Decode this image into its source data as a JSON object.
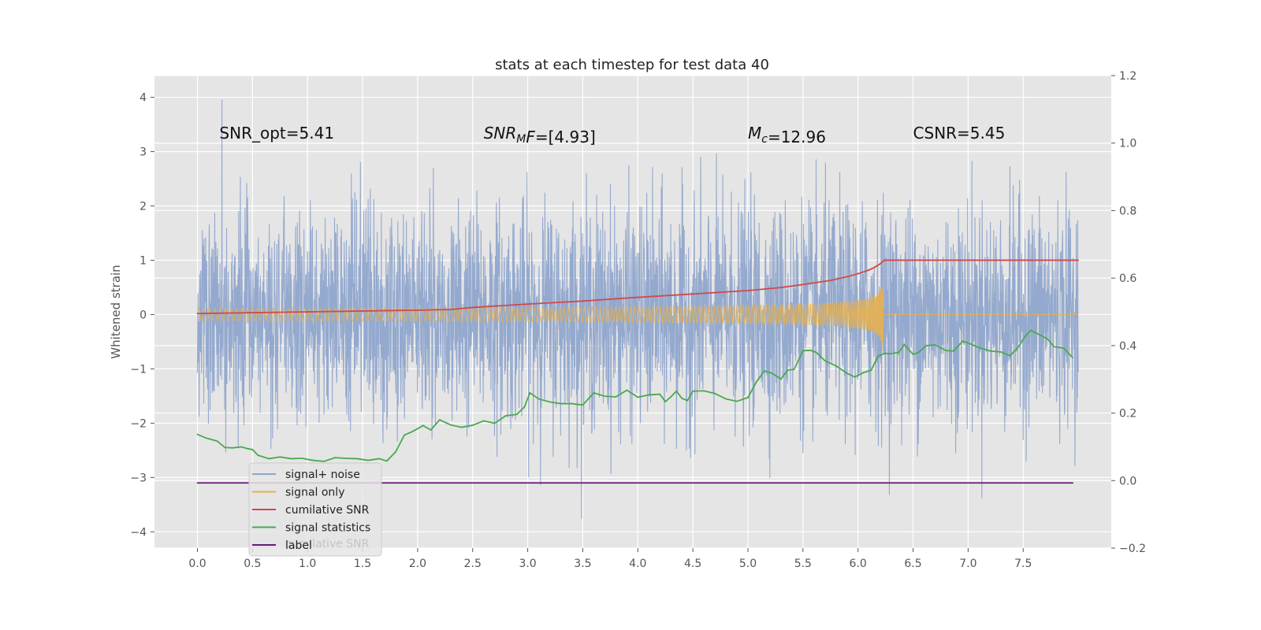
{
  "chart_data": {
    "type": "line",
    "title": "stats at each timestep for test data 40",
    "xlabel": "",
    "ylabel": "Whitened strain",
    "y2label": "",
    "xlim": [
      -0.39,
      8.3
    ],
    "ylim": [
      -4.3,
      4.4
    ],
    "y2lim": [
      -0.2,
      1.2
    ],
    "grid": true,
    "background": "#e5e5e5",
    "legend_placement": "lower-left",
    "x_ticks": [
      0.0,
      0.5,
      1.0,
      1.5,
      2.0,
      2.5,
      3.0,
      3.5,
      4.0,
      4.5,
      5.0,
      5.5,
      6.0,
      6.5,
      7.0,
      7.5
    ],
    "x_tick_labels": [
      "0.0",
      "0.5",
      "1.0",
      "1.5",
      "2.0",
      "2.5",
      "3.0",
      "3.5",
      "4.0",
      "4.5",
      "5.0",
      "5.5",
      "6.0",
      "6.5",
      "7.0",
      "7.5"
    ],
    "y_ticks": [
      -4,
      -3,
      -2,
      -1,
      0,
      1,
      2,
      3,
      4
    ],
    "y_tick_labels": [
      "−4",
      "−3",
      "−2",
      "−1",
      "0",
      "1",
      "2",
      "3",
      "4"
    ],
    "y2_ticks": [
      -0.2,
      0.0,
      0.2,
      0.4,
      0.6,
      0.8,
      1.0,
      1.2
    ],
    "y2_tick_labels": [
      "−0.2",
      "0.0",
      "0.2",
      "0.4",
      "0.6",
      "0.8",
      "1.0",
      "1.2"
    ],
    "annotations": [
      {
        "x": 0.2,
        "y": 3.2,
        "parts": [
          {
            "t": "SNR_opt=5.41",
            "style": "normal"
          }
        ]
      },
      {
        "x": 2.6,
        "y": 3.2,
        "parts": [
          {
            "t": "SNR",
            "style": "italic"
          },
          {
            "t": "M",
            "style": "italic-sub"
          },
          {
            "t": "F",
            "style": "italic"
          },
          {
            "t": "=[4.93]",
            "style": "normal"
          }
        ]
      },
      {
        "x": 5.0,
        "y": 3.2,
        "parts": [
          {
            "t": "M",
            "style": "italic"
          },
          {
            "t": "c",
            "style": "italic-sub"
          },
          {
            "t": "=12.96",
            "style": "normal"
          }
        ]
      },
      {
        "x": 6.5,
        "y": 3.2,
        "parts": [
          {
            "t": "CSNR=5.45",
            "style": "normal"
          }
        ]
      }
    ],
    "series": [
      {
        "name": "signal+ noise",
        "color": "#8fa5cc",
        "axis": "left",
        "style": "dense-noise",
        "x_range": [
          0.0,
          8.0
        ],
        "core_amplitude": 1.0,
        "extreme_range": [
          -3.9,
          4.0
        ]
      },
      {
        "name": "signal only",
        "color": "#e6b050",
        "axis": "left",
        "style": "chirp",
        "x_range": [
          0.0,
          6.23
        ],
        "amplitude_start": 0.02,
        "amplitude_peak": 0.85,
        "peak_x": 6.23
      },
      {
        "name": "cumilative SNR",
        "color": "#d04a48",
        "axis": "right",
        "x": [
          0.0,
          1.0,
          2.0,
          2.3,
          2.5,
          3.0,
          3.5,
          4.0,
          4.5,
          5.0,
          5.3,
          5.5,
          5.75,
          5.9,
          6.0,
          6.1,
          6.15,
          6.2,
          6.24,
          8.0
        ],
        "values": [
          0.495,
          0.5,
          0.505,
          0.507,
          0.513,
          0.523,
          0.532,
          0.543,
          0.553,
          0.563,
          0.572,
          0.581,
          0.593,
          0.604,
          0.613,
          0.624,
          0.632,
          0.642,
          0.653,
          0.653
        ]
      },
      {
        "name": "signal statistics",
        "color": "#4aa84f",
        "axis": "right",
        "x": [
          0.0,
          0.08,
          0.18,
          0.25,
          0.32,
          0.4,
          0.45,
          0.5,
          0.55,
          0.65,
          0.75,
          0.85,
          0.95,
          1.05,
          1.15,
          1.25,
          1.35,
          1.45,
          1.55,
          1.65,
          1.72,
          1.8,
          1.88,
          1.95,
          2.05,
          2.12,
          2.2,
          2.3,
          2.4,
          2.5,
          2.6,
          2.7,
          2.8,
          2.9,
          2.97,
          3.02,
          3.1,
          3.2,
          3.3,
          3.4,
          3.5,
          3.6,
          3.7,
          3.8,
          3.9,
          4.0,
          4.1,
          4.2,
          4.25,
          4.3,
          4.35,
          4.4,
          4.45,
          4.5,
          4.6,
          4.7,
          4.8,
          4.9,
          5.0,
          5.08,
          5.15,
          5.22,
          5.3,
          5.36,
          5.42,
          5.5,
          5.57,
          5.62,
          5.7,
          5.8,
          5.9,
          5.97,
          6.05,
          6.12,
          6.18,
          6.24,
          6.3,
          6.37,
          6.42,
          6.5,
          6.55,
          6.62,
          6.7,
          6.8,
          6.87,
          6.95,
          7.02,
          7.1,
          7.2,
          7.3,
          7.38,
          7.45,
          7.52,
          7.57,
          7.65,
          7.72,
          7.78,
          7.87,
          7.95
        ],
        "values": [
          0.137,
          0.126,
          0.117,
          0.098,
          0.097,
          0.1,
          0.095,
          0.092,
          0.075,
          0.065,
          0.07,
          0.065,
          0.066,
          0.06,
          0.057,
          0.068,
          0.066,
          0.065,
          0.06,
          0.065,
          0.058,
          0.085,
          0.135,
          0.145,
          0.163,
          0.15,
          0.18,
          0.165,
          0.158,
          0.164,
          0.177,
          0.17,
          0.192,
          0.196,
          0.218,
          0.26,
          0.242,
          0.233,
          0.228,
          0.228,
          0.224,
          0.26,
          0.25,
          0.248,
          0.268,
          0.247,
          0.254,
          0.256,
          0.234,
          0.248,
          0.265,
          0.244,
          0.237,
          0.265,
          0.266,
          0.258,
          0.242,
          0.235,
          0.246,
          0.294,
          0.325,
          0.318,
          0.301,
          0.327,
          0.33,
          0.385,
          0.386,
          0.38,
          0.355,
          0.34,
          0.318,
          0.307,
          0.32,
          0.327,
          0.368,
          0.377,
          0.376,
          0.38,
          0.403,
          0.374,
          0.38,
          0.4,
          0.402,
          0.385,
          0.384,
          0.413,
          0.405,
          0.394,
          0.384,
          0.381,
          0.37,
          0.393,
          0.428,
          0.445,
          0.432,
          0.42,
          0.397,
          0.392,
          0.364
        ]
      },
      {
        "name": "label",
        "color": "#6a1a78",
        "axis": "left",
        "x": [
          0.0,
          7.95
        ],
        "values": [
          -3.1,
          -3.1
        ]
      }
    ],
    "legend_entries": [
      "signal+ noise",
      "signal only",
      "cumilative SNR",
      "signal statistics",
      "label"
    ],
    "legend_hidden_text": "cumilative SNR"
  }
}
